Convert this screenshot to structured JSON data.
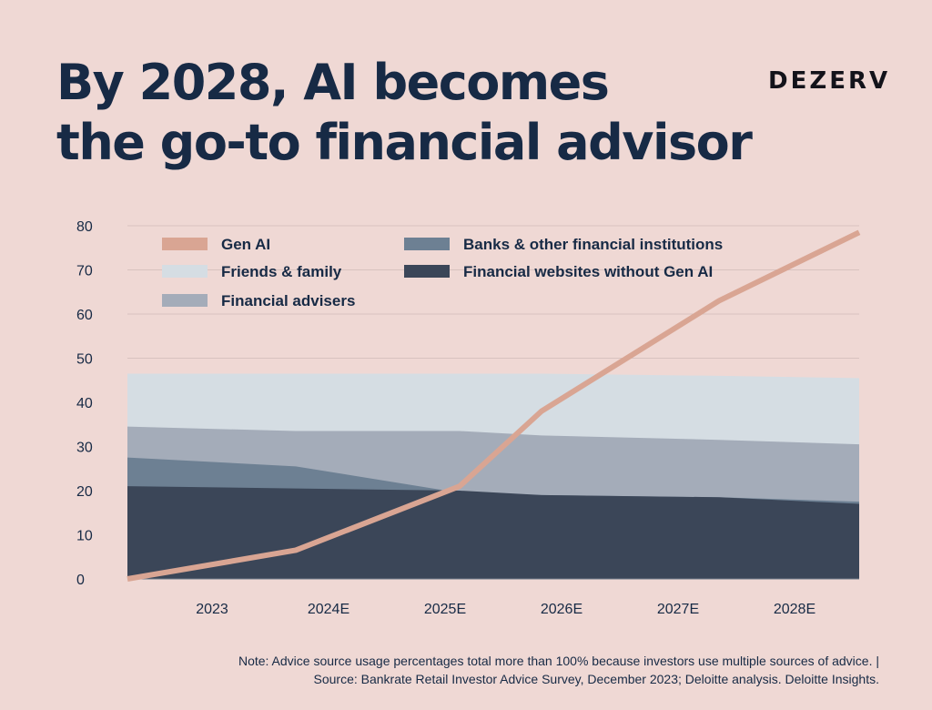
{
  "header": {
    "title_line1": "By 2028, AI becomes",
    "title_line2": "the go-to financial advisor",
    "brand": "DEZERV"
  },
  "footer": {
    "note_line1": "Note: Advice source usage percentages total more than 100% because investors use multiple sources of advice. |",
    "note_line2": "Source: Bankrate Retail Investor Advice Survey, December 2023; Deloitte analysis. Deloitte Insights."
  },
  "chart_data": {
    "type": "area",
    "title": "",
    "xlabel": "",
    "ylabel": "",
    "x": [
      "2023",
      "2024E",
      "2025E",
      "2026E",
      "2027E",
      "2028E"
    ],
    "ylim": [
      0,
      80
    ],
    "yticks": [
      0,
      10,
      20,
      30,
      40,
      50,
      60,
      70,
      80
    ],
    "grid": true,
    "legend_position": "top-left",
    "series": [
      {
        "name": "Gen AI",
        "kind": "line",
        "color": "#d9a593",
        "values": [
          0,
          6.5,
          21,
          38,
          63,
          78.5
        ]
      },
      {
        "name": "Friends & family",
        "kind": "area",
        "color": "#d5dde3",
        "values": [
          46.5,
          46.5,
          46.5,
          46.5,
          46,
          45.5
        ]
      },
      {
        "name": "Financial advisers",
        "kind": "area",
        "color": "#a4acb9",
        "values": [
          34.5,
          33.5,
          33.5,
          32.5,
          31.5,
          30.5
        ]
      },
      {
        "name": "Banks & other financial institutions",
        "kind": "area",
        "color": "#6d8093",
        "values": [
          27.5,
          25.5,
          19.5,
          19,
          18.5,
          17.5
        ]
      },
      {
        "name": "Financial websites without Gen AI",
        "kind": "area",
        "color": "#3b4658",
        "values": [
          21,
          20.5,
          20,
          19,
          18.5,
          17
        ]
      }
    ]
  }
}
